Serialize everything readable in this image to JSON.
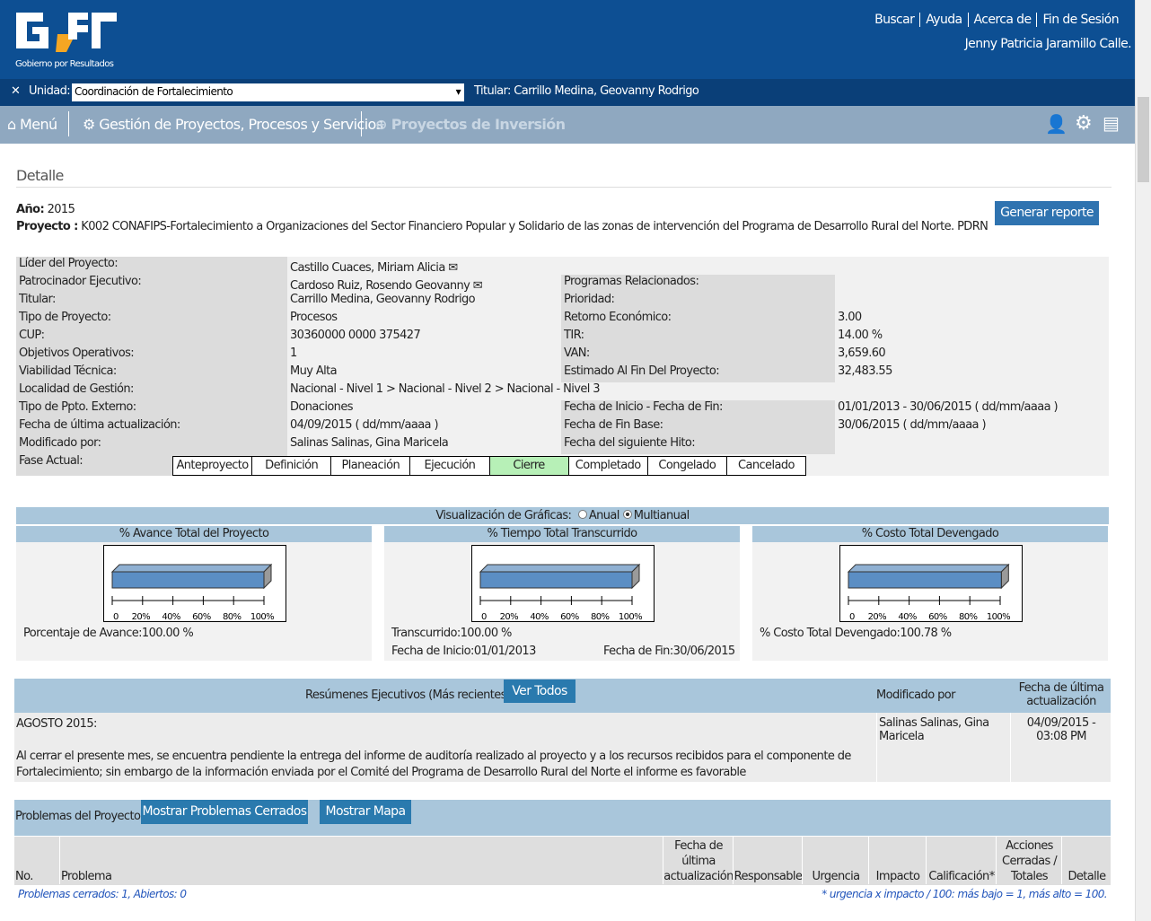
{
  "header": {
    "logo_subtitle": "Gobierno por Resultados",
    "links": [
      "Buscar",
      "Ayuda",
      "Acerca de",
      "Fin de Sesión"
    ],
    "user": "Jenny Patricia Jaramillo Calle."
  },
  "unit_bar": {
    "label": "Unidad:",
    "value": "Coordinación de Fortalecimiento",
    "titular": "Titular: Carrillo Medina, Geovanny Rodrigo"
  },
  "menu": [
    "Menú",
    "Gestión de Proyectos, Procesos y Servicios",
    "Proyectos de Inversión"
  ],
  "section_title": "Detalle",
  "project": {
    "year_label": "Año:",
    "year": "2015",
    "label": "Proyecto :",
    "name": "K002 CONAFIPS-Fortalecimiento a Organizaciones del Sector Financiero Popular y Solidario de las zonas de intervención del Programa de Desarrollo Rural del Norte. PDRN",
    "report_button": "Generar reporte"
  },
  "details": [
    {
      "label": "Líder del Proyecto:",
      "value": "Castillo Cuaces, Miriam Alicia"
    },
    {
      "label": "Patrocinador Ejecutivo:",
      "value": "Cardoso Ruiz, Rosendo Geovanny",
      "label2": "Programas Relacionados:"
    },
    {
      "label": "Titular:",
      "value": "Carrillo Medina, Geovanny Rodrigo",
      "label2": "Prioridad:"
    },
    {
      "label": "Tipo de Proyecto:",
      "value": "Procesos",
      "label2": "Retorno Económico:",
      "value2": "3.00"
    },
    {
      "label": "CUP:",
      "value": "30360000 0000 375427",
      "label2": "TIR:",
      "value2": "14.00 %"
    },
    {
      "label": "Objetivos Operativos:",
      "value": "1",
      "label2": "VAN:",
      "value2": "3,659.60"
    },
    {
      "label": "Viabilidad Técnica:",
      "value": "Muy Alta",
      "label2": "Estimado Al Fin Del Proyecto:",
      "value2": "32,483.55"
    },
    {
      "label": "Localidad de Gestión:",
      "value": "Nacional - Nivel 1 > Nacional - Nivel 2 > Nacional - Nivel 3"
    },
    {
      "label": "Tipo de Ppto. Externo:",
      "value": "Donaciones",
      "label2": "Fecha de Inicio - Fecha de Fin:",
      "value2": "01/01/2013 - 30/06/2015  ( dd/mm/aaaa )"
    },
    {
      "label": "Fecha de última actualización:",
      "value": "04/09/2015  ( dd/mm/aaaa )",
      "label2": "Fecha de Fin Base:",
      "value2": "30/06/2015  ( dd/mm/aaaa )"
    },
    {
      "label": "Modificado por:",
      "value": "Salinas Salinas, Gina Maricela",
      "label2": "Fecha del siguiente Hito:"
    }
  ],
  "phase": {
    "label": "Fase Actual:",
    "phases": [
      "Anteproyecto",
      "Definición",
      "Planeación",
      "Ejecución",
      "Cierre",
      "Completado",
      "Congelado",
      "Cancelado"
    ],
    "active": 4
  },
  "charts_header": {
    "label": "Visualización de Gráficas:",
    "options": [
      "Anual",
      "Multianual"
    ],
    "selected": 1
  },
  "gauges": [
    {
      "title": "% Avance Total del Proyecto",
      "value": 100,
      "stats": [
        [
          "Porcentaje de Avance:",
          "100.00 %"
        ]
      ]
    },
    {
      "title": "% Tiempo Total Transcurrido",
      "value": 100,
      "stats": [
        [
          "Transcurrido:",
          "100.00 %"
        ],
        [
          "Fecha de Inicio:",
          "01/01/2013"
        ],
        [
          "Fecha de Fin:",
          "30/06/2015"
        ]
      ]
    },
    {
      "title": "% Costo Total Devengado",
      "value": 100.78,
      "stats": [
        [
          "% Costo Total Devengado:",
          "100.78 %"
        ]
      ]
    }
  ],
  "gauge_axis": {
    "xlim": [
      0,
      100
    ],
    "xticks": [
      0,
      {
        "value": 20,
        "label": "20%"
      },
      {
        "value": 40,
        "label": "40%"
      },
      {
        "value": 60,
        "label": "60%"
      },
      {
        "value": 80,
        "label": "80%"
      },
      {
        "value": 100,
        "label": "100%"
      }
    ]
  },
  "summaries": {
    "title": "Resúmenes Ejecutivos (Más recientes)",
    "button": "Ver Todos",
    "col_modified": "Modificado por",
    "col_date": "Fecha de última actualización",
    "row": {
      "heading": "AGOSTO 2015:",
      "text": "Al cerrar el presente mes, se encuentra pendiente la entrega del informe de auditoría realizado al proyecto y a los recursos recibidos para el componente de Fortalecimiento; sin embargo de la información enviada por el Comité del Programa de Desarrollo Rural del Norte el informe es favorable",
      "modified": "Salinas Salinas, Gina Maricela",
      "date": "04/09/2015 - 03:08 PM"
    }
  },
  "problems": {
    "title": "Problemas del Proyecto",
    "buttons": [
      "Mostrar Problemas Cerrados",
      "Mostrar Mapa"
    ],
    "columns": [
      "No.",
      "Problema",
      "Fecha de última actualización",
      "Responsable",
      "Urgencia",
      "Impacto",
      "Calificación*",
      "Acciones Cerradas / Totales",
      "Detalle"
    ],
    "footer_left": "Problemas cerrados: 1, Abiertos: 0",
    "footer_right": "* urgencia x impacto / 100: más bajo = 1, más alto = 100."
  }
}
